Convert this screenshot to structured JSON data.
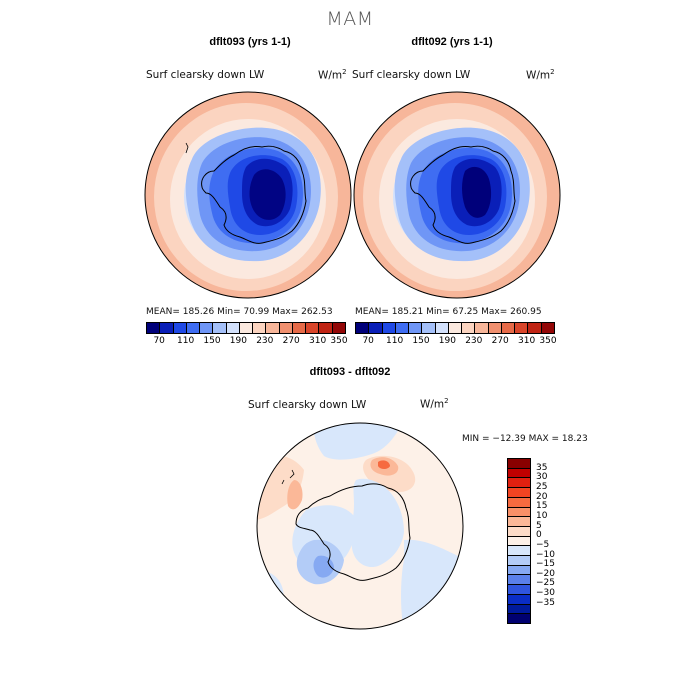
{
  "season": "MAM",
  "colors": {
    "c70": "#00007a",
    "c90": "#0a1fb8",
    "c110": "#1f49e6",
    "c130": "#3f6df2",
    "c150": "#6f96f6",
    "c170": "#a4c0f9",
    "c190": "#d3e1fc",
    "c210": "#fbe9df",
    "c230": "#fbd4c0",
    "c250": "#f7b69a",
    "c270": "#f0906f",
    "c290": "#e66a48",
    "c310": "#d9452a",
    "c330": "#c02414",
    "c350": "#930707",
    "c370": "#6a0000",
    "land_outline": "#000000"
  },
  "panel_left": {
    "title": "dflt093 (yrs 1-1)",
    "variable": "Surf clearsky down LW",
    "units_base": "W/m",
    "units_exp": "2",
    "stats": "MEAN= 185.26   Min=   70.99   Max= 262.53",
    "colorbar_ticks": [
      "70",
      "110",
      "150",
      "190",
      "230",
      "270",
      "310",
      "350"
    ]
  },
  "panel_right": {
    "title": "dflt092 (yrs 1-1)",
    "variable": "Surf clearsky down LW",
    "units_base": "W/m",
    "units_exp": "2",
    "stats": "MEAN= 185.21   Min=   67.25   Max= 260.95",
    "colorbar_ticks": [
      "70",
      "110",
      "150",
      "190",
      "230",
      "270",
      "310",
      "350"
    ]
  },
  "panel_diff": {
    "title": "dflt093 - dflt092",
    "variable": "Surf clearsky down LW",
    "units_base": "W/m",
    "units_exp": "2",
    "stats": "MIN = −12.39  MAX =  18.23",
    "colorbar_levels": [
      "35",
      "30",
      "25",
      "20",
      "15",
      "10",
      "5",
      "0",
      "−5",
      "−10",
      "−15",
      "−20",
      "−25",
      "−30",
      "−35"
    ],
    "colorbar_colors": [
      "#880000",
      "#c00000",
      "#e02010",
      "#f24422",
      "#f66a40",
      "#f99068",
      "#fbb898",
      "#fddcc8",
      "#fdf1e8",
      "#d8e7fb",
      "#b3ccf7",
      "#86a9f2",
      "#5a80ea",
      "#2f55de",
      "#0a2dc6",
      "#001a9c",
      "#000070"
    ]
  }
}
